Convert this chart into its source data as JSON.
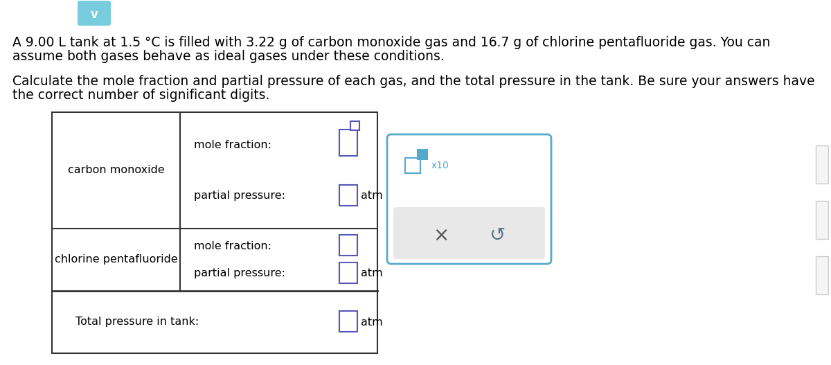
{
  "title_line1": "A 9.00 L tank at 1.5 °C is filled with 3.22 g of carbon monoxide gas and 16.7 g of chlorine pentafluoride gas. You can",
  "title_line2": "assume both gases behave as ideal gases under these conditions.",
  "subtitle_line1": "Calculate the mole fraction and partial pressure of each gas, and the total pressure in the tank. Be sure your answers have",
  "subtitle_line2": "the correct number of significant digits.",
  "row1_label": "carbon monoxide",
  "row2_label": "chlorine pentafluoride",
  "row3_label": "Total pressure in tank:",
  "mole_fraction_label": "mole fraction:",
  "partial_pressure_label": "partial pressure:",
  "atm_label": "atm",
  "x10_label": "x10",
  "x_symbol": "×",
  "input_box_color": "#5555bb",
  "input_box_color_mf0": "#5555bb",
  "popup_border_color": "#55aacc",
  "popup_bg": "#ffffff",
  "popup_footer_bg": "#e8e8e8",
  "body_bg": "#ffffff",
  "text_color": "#000000",
  "table_border_color": "#333333",
  "font_size_body": 13.5,
  "font_size_table": 11.5,
  "chevron_color": "#55bbcc",
  "chevron_bg": "#77ccdd",
  "x10_color": "#55aacc"
}
